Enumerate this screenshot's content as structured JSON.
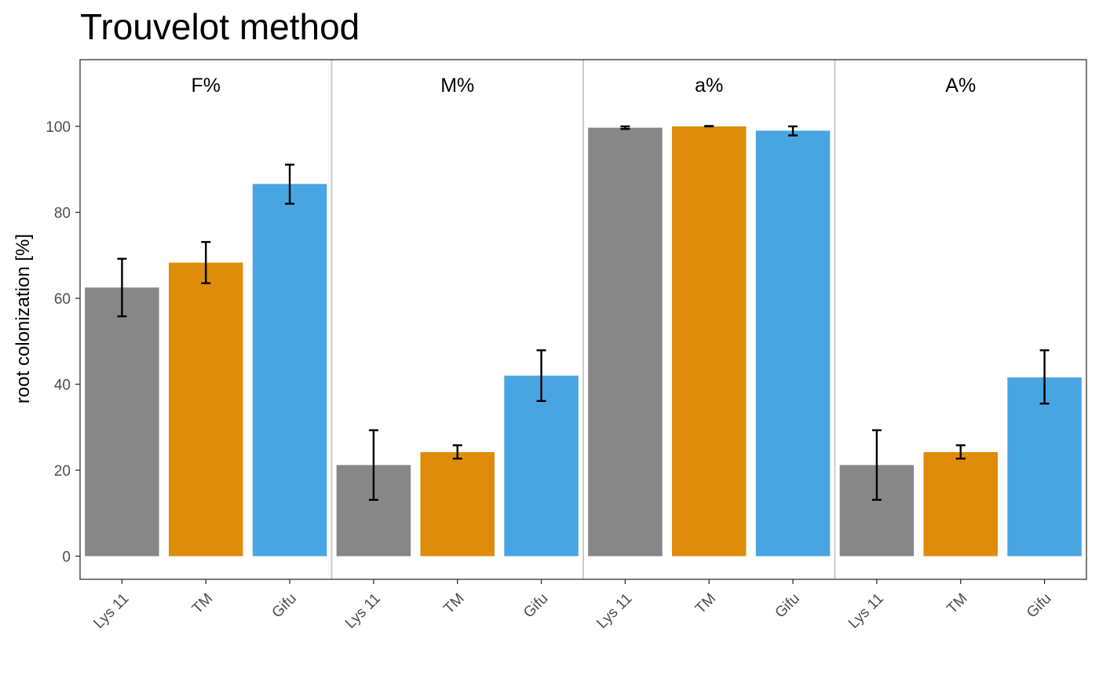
{
  "chart_data": {
    "type": "bar",
    "title": "Trouvelot method",
    "xlabel": "",
    "ylabel": "root colonization [%]",
    "ylim": [
      -5,
      115
    ],
    "yticks": [
      0,
      20,
      40,
      60,
      80,
      100
    ],
    "categories": [
      "Lys 11",
      "TM",
      "Gifu"
    ],
    "colors": {
      "Lys 11": "#878787",
      "TM": "#DE8C0A",
      "Gifu": "#49A5E2"
    },
    "grid": false,
    "facets": [
      {
        "label": "F%",
        "values": [
          62.5,
          68.3,
          86.6
        ],
        "errors": [
          [
            55.8,
            69.2
          ],
          [
            63.5,
            73.1
          ],
          [
            82.0,
            91.1
          ]
        ]
      },
      {
        "label": "M%",
        "values": [
          21.2,
          24.2,
          42.0
        ],
        "errors": [
          [
            13.1,
            29.3
          ],
          [
            22.7,
            25.8
          ],
          [
            36.1,
            47.9
          ]
        ]
      },
      {
        "label": "a%",
        "values": [
          99.7,
          100.0,
          99.0
        ],
        "errors": [
          [
            99.4,
            100.0
          ],
          [
            100.0,
            100.1
          ],
          [
            97.9,
            100.0
          ]
        ]
      },
      {
        "label": "A%",
        "values": [
          21.2,
          24.2,
          41.6
        ],
        "errors": [
          [
            13.1,
            29.3
          ],
          [
            22.7,
            25.8
          ],
          [
            35.5,
            47.9
          ]
        ]
      }
    ]
  }
}
